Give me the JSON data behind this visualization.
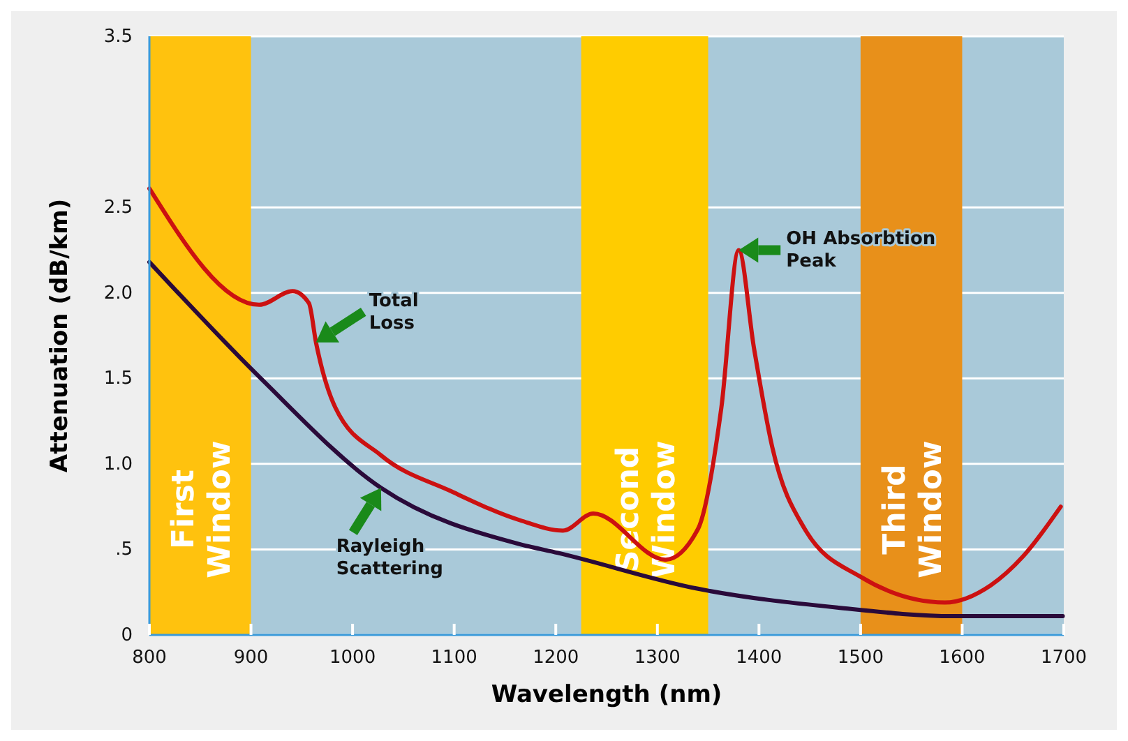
{
  "chart_data": {
    "type": "line",
    "xlabel": "Wavelength (nm)",
    "ylabel": "Attenuation (dB/km)",
    "xlim": [
      800,
      1700
    ],
    "xticks": [
      800,
      900,
      1000,
      1100,
      1200,
      1300,
      1400,
      1500,
      1600,
      1700
    ],
    "ylim": [
      0,
      3.5
    ],
    "yticks": [
      0,
      {
        "value": 0.5,
        "label": ".5"
      },
      {
        "value": 1,
        "label": "1.0"
      },
      {
        "value": 1.5,
        "label": "1.5"
      },
      {
        "value": 2,
        "label": "2.0"
      },
      {
        "value": 2.5,
        "label": "2.5"
      },
      3.5
    ],
    "grid": "y",
    "marker": "none",
    "line_style": "solid",
    "series": [
      {
        "color": "#cc1111",
        "x": [
          800,
          908,
          941,
          957,
          964,
          983,
          1028,
          1097,
          1165,
          1207,
          1237,
          1308,
          1340,
          1363,
          1380,
          1395,
          1413,
          1445,
          1500,
          1583,
          1628,
          1660,
          1697
        ],
        "values": [
          2.61,
          1.93,
          2.01,
          1.94,
          1.71,
          1.33,
          1.05,
          0.84,
          0.67,
          0.61,
          0.71,
          0.44,
          0.62,
          1.33,
          2.25,
          1.68,
          1.1,
          0.62,
          0.34,
          0.19,
          0.29,
          0.46,
          0.75
        ]
      },
      {
        "color": "#2a0a3a",
        "x": [
          800,
          908,
          1028,
          1165,
          1202,
          1340,
          1477,
          1591,
          1699
        ],
        "values": [
          2.18,
          1.51,
          0.86,
          0.53,
          0.48,
          0.27,
          0.16,
          0.11,
          0.11
        ]
      }
    ],
    "bands": [
      {
        "axis": "x",
        "from": 800,
        "to": 900,
        "label": "First Window",
        "color": "#ffc20e"
      },
      {
        "axis": "x",
        "from": 1225,
        "to": 1350,
        "label": "Second Window",
        "color": "#ffcc00"
      },
      {
        "axis": "x",
        "from": 1500,
        "to": 1600,
        "label": "Third Window",
        "color": "#e8901a"
      }
    ],
    "annotations": [
      {
        "text": "Total Loss",
        "x": 964,
        "y": 1.71
      },
      {
        "text": "Rayleigh Scattering",
        "x": 1028,
        "y": 0.86
      },
      {
        "text": "OH Absorbtion Peak",
        "x": 1380,
        "y": 2.25
      }
    ]
  }
}
